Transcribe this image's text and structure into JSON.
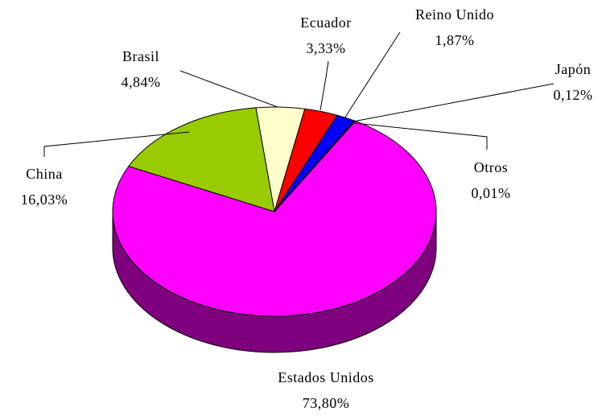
{
  "chart_data": {
    "type": "pie",
    "categories": [
      "Brasil",
      "Ecuador",
      "Reino Unido",
      "Japón",
      "Otros",
      "Estados Unidos",
      "China"
    ],
    "values": [
      4.84,
      3.33,
      1.87,
      0.12,
      0.01,
      73.8,
      16.03
    ],
    "value_labels": [
      "4,84%",
      "3,33%",
      "1,87%",
      "0,12%",
      "0,01%",
      "73,80%",
      "16,03%"
    ],
    "colors": [
      "#ffffcc",
      "#ff0000",
      "#0000ff",
      "#33cccc",
      "#993366",
      "#ff00ff",
      "#99cc00"
    ],
    "three_d": true
  }
}
